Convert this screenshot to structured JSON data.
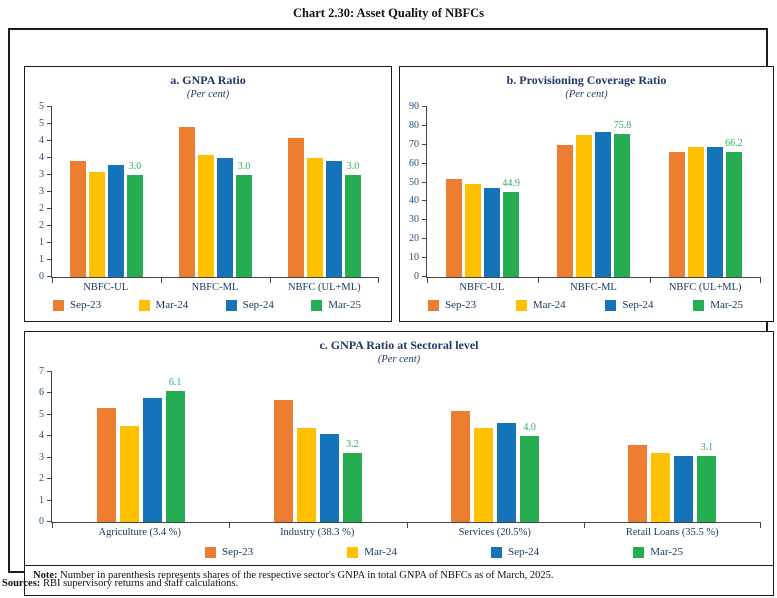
{
  "page": {
    "title": "Chart 2.30: Asset Quality of NBFCs",
    "sources_label": "Sources:",
    "sources_text": " RBI supervisory returns and staff calculations."
  },
  "colors": {
    "series": [
      "#ED7D31",
      "#FFC000",
      "#1473B9",
      "#27AD51"
    ],
    "data_label": "#2EAD5B",
    "axis_text": "#1F4E79",
    "label_text": "#17375E",
    "title_text": "#203864"
  },
  "legend": [
    "Sep-23",
    "Mar-24",
    "Sep-24",
    "Mar-25"
  ],
  "chart_data": [
    {
      "id": "gnpa",
      "type": "bar",
      "title": "a. GNPA Ratio",
      "subtitle": "(Per cent)",
      "categories": [
        "NBFC-UL",
        "NBFC-ML",
        "NBFC (UL+ML)"
      ],
      "series": [
        {
          "name": "Sep-23",
          "values": [
            3.4,
            4.4,
            4.1
          ]
        },
        {
          "name": "Mar-24",
          "values": [
            3.1,
            3.6,
            3.5
          ]
        },
        {
          "name": "Sep-24",
          "values": [
            3.3,
            3.5,
            3.4
          ]
        },
        {
          "name": "Mar-25",
          "values": [
            3.0,
            3.0,
            3.0
          ],
          "labels": [
            "3.0",
            "3.0",
            "3.0"
          ]
        }
      ],
      "ylim": [
        0,
        5
      ],
      "ytick_labels": [
        "0",
        "1",
        "1",
        "2",
        "2",
        "3",
        "3",
        "4",
        "4",
        "5",
        "5"
      ],
      "grid": false,
      "legend_position": "bottom"
    },
    {
      "id": "pcr",
      "type": "bar",
      "title": "b. Provisioning Coverage Ratio",
      "subtitle": "(Per cent)",
      "categories": [
        "NBFC-UL",
        "NBFC-ML",
        "NBFC (UL+ML)"
      ],
      "series": [
        {
          "name": "Sep-23",
          "values": [
            52.0,
            70.0,
            66.0
          ]
        },
        {
          "name": "Mar-24",
          "values": [
            49.0,
            75.3,
            69.0
          ]
        },
        {
          "name": "Sep-24",
          "values": [
            47.0,
            76.5,
            68.7
          ]
        },
        {
          "name": "Mar-25",
          "values": [
            44.9,
            75.8,
            66.2
          ],
          "labels": [
            "44.9",
            "75.8",
            "66.2"
          ]
        }
      ],
      "ylim": [
        0,
        90
      ],
      "ytick_labels": [
        "0",
        "10",
        "20",
        "30",
        "40",
        "50",
        "60",
        "70",
        "80",
        "90"
      ],
      "grid": false,
      "legend_position": "bottom"
    },
    {
      "id": "sectoral",
      "type": "bar",
      "title": "c. GNPA Ratio at Sectoral level",
      "subtitle": "(Per cent)",
      "categories": [
        "Agriculture (3.4 %)",
        "Industry (38.3 %)",
        "Services (20.5%)",
        "Retail Loans (35.5 %)"
      ],
      "series": [
        {
          "name": "Sep-23",
          "values": [
            5.3,
            5.7,
            5.2,
            3.6
          ]
        },
        {
          "name": "Mar-24",
          "values": [
            4.5,
            4.4,
            4.4,
            3.2
          ]
        },
        {
          "name": "Sep-24",
          "values": [
            5.8,
            4.1,
            4.6,
            3.1
          ]
        },
        {
          "name": "Mar-25",
          "values": [
            6.1,
            3.2,
            4.0,
            3.1
          ],
          "labels": [
            "6.1",
            "3.2",
            "4.0",
            "3.1"
          ]
        }
      ],
      "ylim": [
        0,
        7
      ],
      "ytick_labels": [
        "0",
        "1",
        "2",
        "3",
        "4",
        "5",
        "6",
        "7"
      ],
      "grid": false,
      "legend_position": "bottom",
      "note_label": "Note:",
      "note_text": " Number in parenthesis represents shares of the respective sector's GNPA in total GNPA of NBFCs as of March, 2025."
    }
  ]
}
